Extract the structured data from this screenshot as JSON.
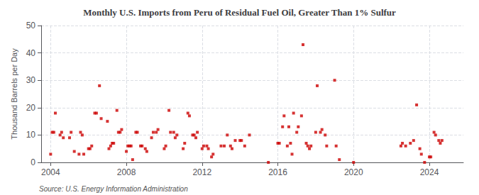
{
  "chart_data": {
    "type": "scatter",
    "title": "Monthly U.S. Imports from Peru of Residual Fuel Oil, Greater Than 1% Sulfur",
    "ylabel": "Thousand Barrels per Day",
    "annotations": [
      "Source: U.S. Energy Information Administration"
    ],
    "color": "#cc0000",
    "marker": "square",
    "grid": true,
    "xlim": [
      2003.5,
      2025.8
    ],
    "xticks": [
      2004,
      2008,
      2012,
      2016,
      2020,
      2024
    ],
    "ylim": [
      0,
      50
    ],
    "yticks": [
      0,
      10,
      20,
      30,
      40,
      50
    ],
    "x": [
      2004.0,
      2004.08,
      2004.17,
      2004.25,
      2004.5,
      2004.58,
      2004.67,
      2005.0,
      2005.08,
      2005.25,
      2005.5,
      2005.58,
      2005.67,
      2005.75,
      2006.0,
      2006.08,
      2006.17,
      2006.33,
      2006.42,
      2006.58,
      2006.67,
      2007.0,
      2007.08,
      2007.17,
      2007.25,
      2007.33,
      2007.5,
      2007.58,
      2007.67,
      2007.75,
      2008.0,
      2008.08,
      2008.17,
      2008.25,
      2008.33,
      2008.5,
      2008.58,
      2008.75,
      2008.83,
      2009.0,
      2009.08,
      2009.33,
      2009.42,
      2009.58,
      2009.67,
      2010.0,
      2010.08,
      2010.25,
      2010.33,
      2010.5,
      2010.58,
      2010.67,
      2011.0,
      2011.08,
      2011.25,
      2011.33,
      2011.5,
      2011.58,
      2011.67,
      2011.75,
      2012.0,
      2012.08,
      2012.25,
      2012.33,
      2012.5,
      2012.58,
      2013.0,
      2013.17,
      2013.33,
      2013.5,
      2013.58,
      2013.75,
      2014.0,
      2014.08,
      2014.25,
      2014.5,
      2015.5,
      2016.0,
      2016.08,
      2016.25,
      2016.33,
      2016.5,
      2016.58,
      2016.67,
      2016.75,
      2016.83,
      2017.0,
      2017.08,
      2017.25,
      2017.33,
      2017.5,
      2017.58,
      2017.67,
      2017.75,
      2018.0,
      2018.08,
      2018.25,
      2018.33,
      2018.5,
      2018.58,
      2019.0,
      2019.08,
      2019.25,
      2020.0,
      2022.5,
      2022.58,
      2022.75,
      2023.0,
      2023.17,
      2023.33,
      2023.5,
      2023.58,
      2023.75,
      2024.0,
      2024.08,
      2024.25,
      2024.33,
      2024.5,
      2024.58,
      2024.67
    ],
    "values": [
      3,
      11,
      11,
      18,
      10,
      11,
      9,
      9,
      11,
      4,
      3,
      11,
      10,
      3,
      5,
      5,
      6,
      18,
      18,
      28,
      16,
      15,
      5,
      6,
      7,
      7,
      19,
      11,
      11,
      12,
      4,
      6,
      6,
      6,
      1,
      11,
      11,
      6,
      6,
      5,
      4,
      9,
      11,
      11,
      12,
      5,
      6,
      19,
      11,
      11,
      9,
      10,
      5,
      7,
      18,
      17,
      10,
      10,
      9,
      11,
      5,
      6,
      6,
      5,
      2,
      3,
      6,
      6,
      10,
      6,
      5,
      8,
      8,
      8,
      6,
      10,
      0,
      7,
      7,
      13,
      17,
      6,
      13,
      7,
      3,
      18,
      11,
      13,
      17,
      43,
      7,
      6,
      5,
      6,
      11,
      28,
      11,
      12,
      10,
      6,
      30,
      6,
      1,
      0,
      6,
      7,
      6,
      7,
      8,
      21,
      5,
      3,
      0,
      2,
      2,
      11,
      10,
      8,
      7,
      8
    ]
  }
}
